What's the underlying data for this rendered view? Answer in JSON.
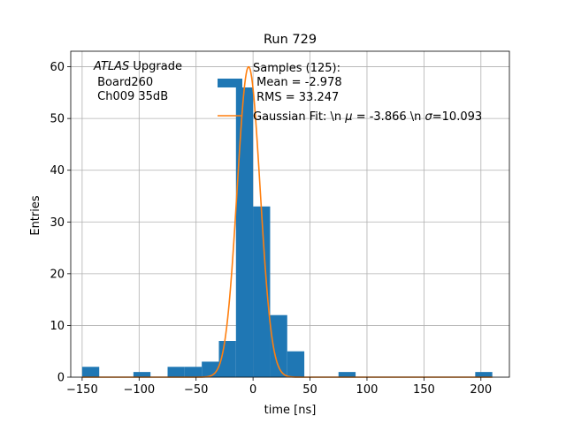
{
  "chart_data": {
    "type": "bar",
    "title": "Run 729",
    "xlabel": "time [ns]",
    "ylabel": "Entries",
    "xlim": [
      -160,
      225
    ],
    "ylim": [
      0,
      63
    ],
    "xticks": [
      -150,
      -100,
      -50,
      0,
      50,
      100,
      150,
      200
    ],
    "yticks": [
      0,
      10,
      20,
      30,
      40,
      50,
      60
    ],
    "grid": true,
    "bar_color": "#1f77b4",
    "fit_color": "#ff7f0e",
    "histogram": [
      {
        "x0": -150,
        "x1": -135,
        "count": 2
      },
      {
        "x0": -105,
        "x1": -90,
        "count": 1
      },
      {
        "x0": -75,
        "x1": -60,
        "count": 2
      },
      {
        "x0": -60,
        "x1": -45,
        "count": 2
      },
      {
        "x0": -45,
        "x1": -30,
        "count": 3
      },
      {
        "x0": -30,
        "x1": -15,
        "count": 7
      },
      {
        "x0": -15,
        "x1": 0,
        "count": 56
      },
      {
        "x0": 0,
        "x1": 15,
        "count": 33
      },
      {
        "x0": 15,
        "x1": 30,
        "count": 12
      },
      {
        "x0": 30,
        "x1": 45,
        "count": 5
      },
      {
        "x0": 75,
        "x1": 90,
        "count": 1
      },
      {
        "x0": 195,
        "x1": 210,
        "count": 1
      }
    ],
    "fit": {
      "mu": -3.866,
      "sigma": 10.093,
      "amplitude": 60
    },
    "annotation": {
      "line1_italic": "ATLAS",
      "line1_rest": " Upgrade",
      "line2": " Board260",
      "line3": " Ch009 35dB"
    },
    "legend": {
      "placement": "upper-center",
      "samples_line1": "Samples (125):",
      "samples_line2": " Mean = -2.978",
      "samples_line3": " RMS = 33.247",
      "fit_label_pre": "Gaussian Fit: \\n ",
      "fit_label_mu_sym": "μ",
      "fit_label_mid": " = -3.866 \\n ",
      "fit_label_sigma_sym": "σ",
      "fit_label_post": "=10.093"
    }
  }
}
